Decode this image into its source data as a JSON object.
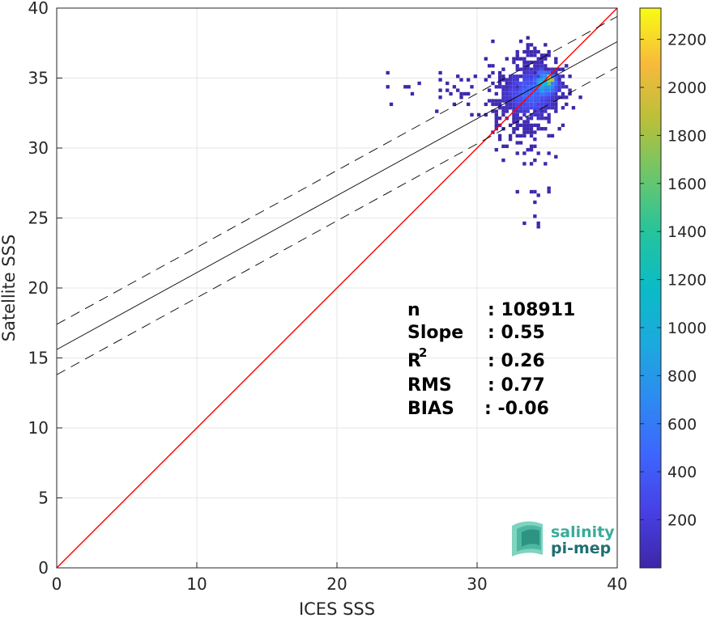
{
  "chart_data": {
    "type": "heatmap",
    "xlabel": "ICES SSS",
    "ylabel": "Satellite SSS",
    "xlim": [
      0,
      40
    ],
    "ylim": [
      0,
      40
    ],
    "xticks": [
      "0",
      "10",
      "20",
      "30",
      "40"
    ],
    "yticks": [
      "0",
      "5",
      "10",
      "15",
      "20",
      "25",
      "30",
      "35",
      "40"
    ],
    "grid": true,
    "colorbar": {
      "range": [
        0,
        2330
      ],
      "ticks": [
        "200",
        "400",
        "600",
        "800",
        "1000",
        "1200",
        "1400",
        "1600",
        "1800",
        "2000",
        "2200"
      ],
      "colormap": "parula"
    },
    "lines": [
      {
        "name": "one-to-one",
        "color": "#ff0000",
        "style": "solid",
        "x": [
          0,
          40
        ],
        "y": [
          0,
          40
        ]
      },
      {
        "name": "regression",
        "color": "#000000",
        "style": "solid",
        "x": [
          0,
          40
        ],
        "y": [
          15.6,
          37.6
        ]
      },
      {
        "name": "regression-upper",
        "color": "#000000",
        "style": "dashed",
        "x": [
          0,
          40
        ],
        "y": [
          17.4,
          39.4
        ]
      },
      {
        "name": "regression-lower",
        "color": "#000000",
        "style": "dashed",
        "x": [
          0,
          40
        ],
        "y": [
          13.8,
          35.8
        ]
      }
    ],
    "density_clusters": [
      {
        "x": 33.8,
        "y": 33.9,
        "sx": 1.1,
        "sy": 1.0,
        "count": 520,
        "peak": 500
      },
      {
        "x": 34.8,
        "y": 34.6,
        "sx": 0.6,
        "sy": 0.6,
        "count": 200,
        "peak": 1100
      },
      {
        "x": 35.2,
        "y": 34.9,
        "sx": 0.2,
        "sy": 0.25,
        "count": 25,
        "peak": 2300
      },
      {
        "x": 32.5,
        "y": 33.3,
        "sx": 0.9,
        "sy": 1.2,
        "count": 160,
        "peak": 90
      },
      {
        "x": 34.0,
        "y": 36.3,
        "sx": 0.8,
        "sy": 0.6,
        "count": 70,
        "peak": 60
      },
      {
        "x": 34.0,
        "y": 30.5,
        "sx": 0.9,
        "sy": 1.0,
        "count": 40,
        "peak": 40
      },
      {
        "x": 34.3,
        "y": 27.5,
        "sx": 0.5,
        "sy": 1.2,
        "count": 12,
        "peak": 20
      },
      {
        "x": 28.0,
        "y": 34.2,
        "sx": 2.0,
        "sy": 0.7,
        "count": 30,
        "peak": 20
      }
    ],
    "stats": [
      {
        "label": "n",
        "value": ": 108911"
      },
      {
        "label": "Slope",
        "value": ": 0.55"
      },
      {
        "label": "R",
        "sup": "2",
        "value": ": 0.26"
      },
      {
        "label": "RMS",
        "value": ": 0.77"
      },
      {
        "label": "BIAS",
        "value": ": -0.06"
      }
    ]
  },
  "logo": {
    "line1": "salinity",
    "line2": "pi-mep",
    "color1": "#3aab9a",
    "color2": "#1f6f73"
  }
}
